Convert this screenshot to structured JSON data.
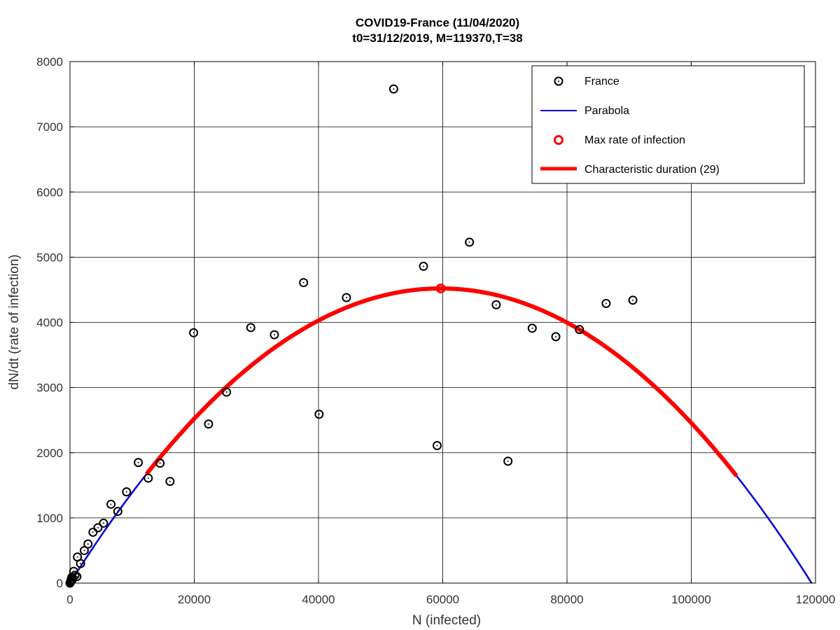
{
  "chart_data": {
    "type": "scatter",
    "title": "COVID19-France (11/04/2020)",
    "subtitle": "t0=31/12/2019, M=119370,T=38",
    "xlabel": "N (infected)",
    "ylabel": "dN/dt (rate of infection)",
    "xlim": [
      0,
      120000
    ],
    "ylim": [
      0,
      8000
    ],
    "x_ticks": [
      0,
      20000,
      40000,
      60000,
      80000,
      100000,
      120000
    ],
    "y_ticks": [
      0,
      1000,
      2000,
      3000,
      4000,
      5000,
      6000,
      7000,
      8000
    ],
    "grid": true,
    "legend_position": "top-right",
    "series": [
      {
        "name": "France",
        "kind": "markers",
        "color": "#000000",
        "x": [
          0,
          50,
          100,
          150,
          200,
          300,
          400,
          600,
          800,
          1100,
          1200,
          1700,
          2300,
          2900,
          3700,
          4500,
          5400,
          6600,
          7700,
          9100,
          11000,
          12600,
          14500,
          16100,
          19900,
          22300,
          25200,
          29100,
          32900,
          37600,
          40100,
          44500,
          52100,
          56900,
          59100,
          64300,
          68600,
          70500,
          74400,
          78200,
          82000,
          86300,
          90600
        ],
        "y": [
          0,
          10,
          20,
          40,
          60,
          90,
          60,
          180,
          120,
          100,
          400,
          300,
          500,
          600,
          780,
          850,
          920,
          1210,
          1100,
          1400,
          1850,
          1610,
          1840,
          1560,
          3840,
          2440,
          2930,
          3920,
          3810,
          4610,
          2590,
          4380,
          7580,
          4860,
          2110,
          5230,
          4270,
          1870,
          3910,
          3780,
          3890,
          4290,
          4340
        ]
      },
      {
        "name": "Parabola",
        "kind": "line",
        "color": "#0000dd",
        "x_range": [
          0,
          119370
        ]
      },
      {
        "name": "Max rate of infection",
        "kind": "marker",
        "color": "#ff0000",
        "x": 59685,
        "y": 4520
      },
      {
        "name": "Characteristic duration (29)",
        "kind": "line",
        "color": "#ff0000",
        "x_range": [
          12300,
          107300
        ]
      }
    ],
    "parabola": {
      "M": 119370,
      "peak_rate": 4520
    }
  }
}
